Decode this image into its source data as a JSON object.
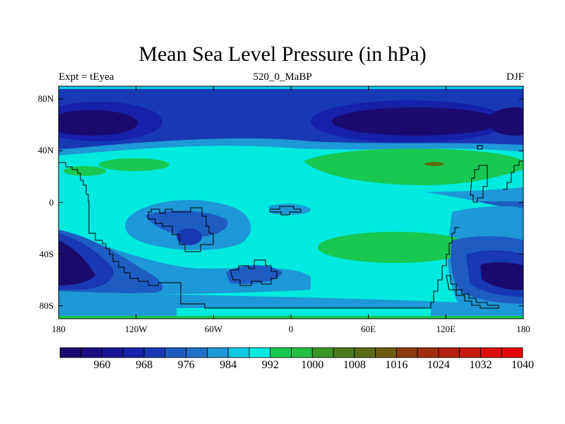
{
  "chart_data": {
    "type": "filled-contour map",
    "title": "Mean Sea Level Pressure (in hPa)",
    "left_label": "Expt = tEyea",
    "center_label": "520_0_MaBP",
    "right_label": "DJF",
    "xlim": [
      -180,
      180
    ],
    "ylim": [
      -90,
      90
    ],
    "x_ticks": [
      {
        "value": -180,
        "label": "180"
      },
      {
        "value": -120,
        "label": "120W"
      },
      {
        "value": -60,
        "label": "60W"
      },
      {
        "value": 0,
        "label": "0"
      },
      {
        "value": 60,
        "label": "60E"
      },
      {
        "value": 120,
        "label": "120E"
      },
      {
        "value": 180,
        "label": "180"
      }
    ],
    "y_ticks": [
      {
        "value": 80,
        "label": "80N"
      },
      {
        "value": 40,
        "label": "40N"
      },
      {
        "value": 0,
        "label": "0"
      },
      {
        "value": -40,
        "label": "40S"
      },
      {
        "value": -80,
        "label": "80S"
      }
    ],
    "contour_levels": [
      956,
      960,
      964,
      968,
      972,
      976,
      980,
      984,
      988,
      992,
      996,
      1000,
      1004,
      1008,
      1012,
      1016,
      1020,
      1024,
      1028,
      1032,
      1036,
      1040
    ],
    "colorbar_labels": [
      {
        "value": 960,
        "label": "960"
      },
      {
        "value": 968,
        "label": "968"
      },
      {
        "value": 976,
        "label": "976"
      },
      {
        "value": 984,
        "label": "984"
      },
      {
        "value": 992,
        "label": "992"
      },
      {
        "value": 1000,
        "label": "1000"
      },
      {
        "value": 1008,
        "label": "1008"
      },
      {
        "value": 1016,
        "label": "1016"
      },
      {
        "value": 1024,
        "label": "1024"
      },
      {
        "value": 1032,
        "label": "1032"
      },
      {
        "value": 1040,
        "label": "1040"
      }
    ],
    "colors": [
      "#1a0a6e",
      "#1c0d82",
      "#1a1596",
      "#1620a8",
      "#1838b4",
      "#1e5cc2",
      "#2070c8",
      "#1e98d6",
      "#10c8e4",
      "#00eae0",
      "#18c850",
      "#22c040",
      "#3c9628",
      "#467a1c",
      "#5a6c14",
      "#6e5a10",
      "#8a3c10",
      "#a02c10",
      "#b42010",
      "#c81810",
      "#dc0e0e",
      "#e6000a"
    ]
  }
}
